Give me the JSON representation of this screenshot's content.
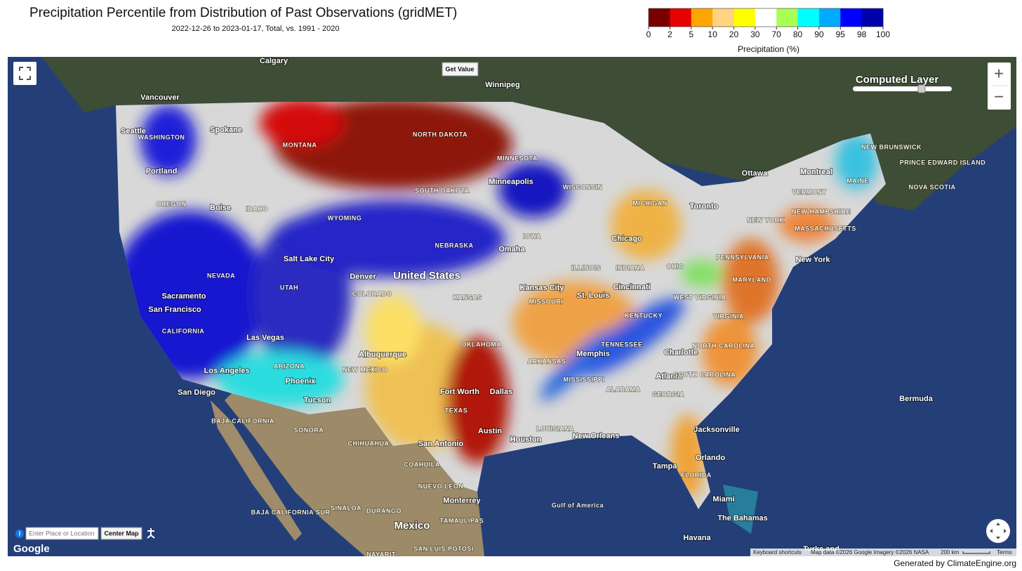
{
  "header": {
    "title": "Precipitation Percentile from Distribution of Past Observations (gridMET)",
    "subtitle": "2022-12-26 to 2023-01-17, Total, vs. 1991 - 2020"
  },
  "legend": {
    "title": "Precipitation (%)",
    "bins": [
      0,
      2,
      5,
      10,
      20,
      30,
      70,
      80,
      90,
      95,
      98,
      100
    ],
    "colors": [
      "#7a0000",
      "#e60000",
      "#ffa500",
      "#ffd37f",
      "#ffff00",
      "#ffffff",
      "#aaff55",
      "#00ffff",
      "#00aaff",
      "#0000ff",
      "#0000aa"
    ]
  },
  "controls": {
    "get_value": "Get Value",
    "layer_label": "Computed Layer",
    "search_placeholder": "Enter Place or Location",
    "center_map": "Center Map",
    "zoom_in": "+",
    "zoom_out": "−"
  },
  "map": {
    "labels": [
      "Calgary",
      "Vancouver",
      "Winnipeg",
      "Seattle",
      "Portland",
      "Spokane",
      "WASHINGTON",
      "OREGON",
      "MONTANA",
      "NORTH DAKOTA",
      "SOUTH DAKOTA",
      "MINNESOTA",
      "Minneapolis",
      "WISCONSIN",
      "MICHIGAN",
      "WYOMING",
      "IDAHO",
      "Boise",
      "NEVADA",
      "UTAH",
      "COLORADO",
      "NEBRASKA",
      "Omaha",
      "IOWA",
      "KANSAS",
      "MISSOURI",
      "ILLINOIS",
      "INDIANA",
      "OHIO",
      "Sacramento",
      "San Francisco",
      "CALIFORNIA",
      "Las Vegas",
      "Salt Lake City",
      "Denver",
      "United States",
      "Kansas City",
      "St. Louis",
      "Chicago",
      "Cincinnati",
      "Los Angeles",
      "San Diego",
      "ARIZONA",
      "Phoenix",
      "Tucson",
      "NEW MEXICO",
      "Albuquerque",
      "OKLAHOMA",
      "TEXAS",
      "Fort Worth",
      "Dallas",
      "Austin",
      "San Antonio",
      "Houston",
      "ARKANSAS",
      "MISSISSIPPI",
      "ALABAMA",
      "TENNESSEE",
      "KENTUCKY",
      "Memphis",
      "LOUISIANA",
      "New Orleans",
      "Atlanta",
      "GEORGIA",
      "Charlotte",
      "SOUTH CAROLINA",
      "NORTH CAROLINA",
      "VIRGINIA",
      "WEST VIRGINIA",
      "MARYLAND",
      "PENNSYLVANIA",
      "New York",
      "NEW YORK",
      "MASSACHUSETTS",
      "VERMONT",
      "NEW HAMPSHIRE",
      "MAINE",
      "Toronto",
      "Ottawa",
      "Montreal",
      "NEW BRUNSWICK",
      "PRINCE EDWARD ISLAND",
      "NOVA SCOTIA",
      "Bermuda",
      "Jacksonville",
      "Orlando",
      "Tampa",
      "FLORIDA",
      "Miami",
      "The Bahamas",
      "Havana",
      "Gulf of America",
      "Mexico",
      "SONORA",
      "CHIHUAHUA",
      "COAHUILA",
      "NUEVO LEON",
      "Monterrey",
      "SINALOA",
      "DURANGO",
      "TAMAULIPAS",
      "BAJA CALIFORNIA",
      "BAJA CALIFORNIA SUR",
      "SAN LUIS POTOSI",
      "NAYARIT",
      "Turks and"
    ]
  },
  "attribution": {
    "logo": "Google",
    "shortcuts": "Keyboard shortcuts",
    "data": "Map data ©2026 Google Imagery ©2026 NASA",
    "scale": "200 km",
    "terms": "Terms"
  },
  "footer": "Generated by ClimateEngine.org"
}
